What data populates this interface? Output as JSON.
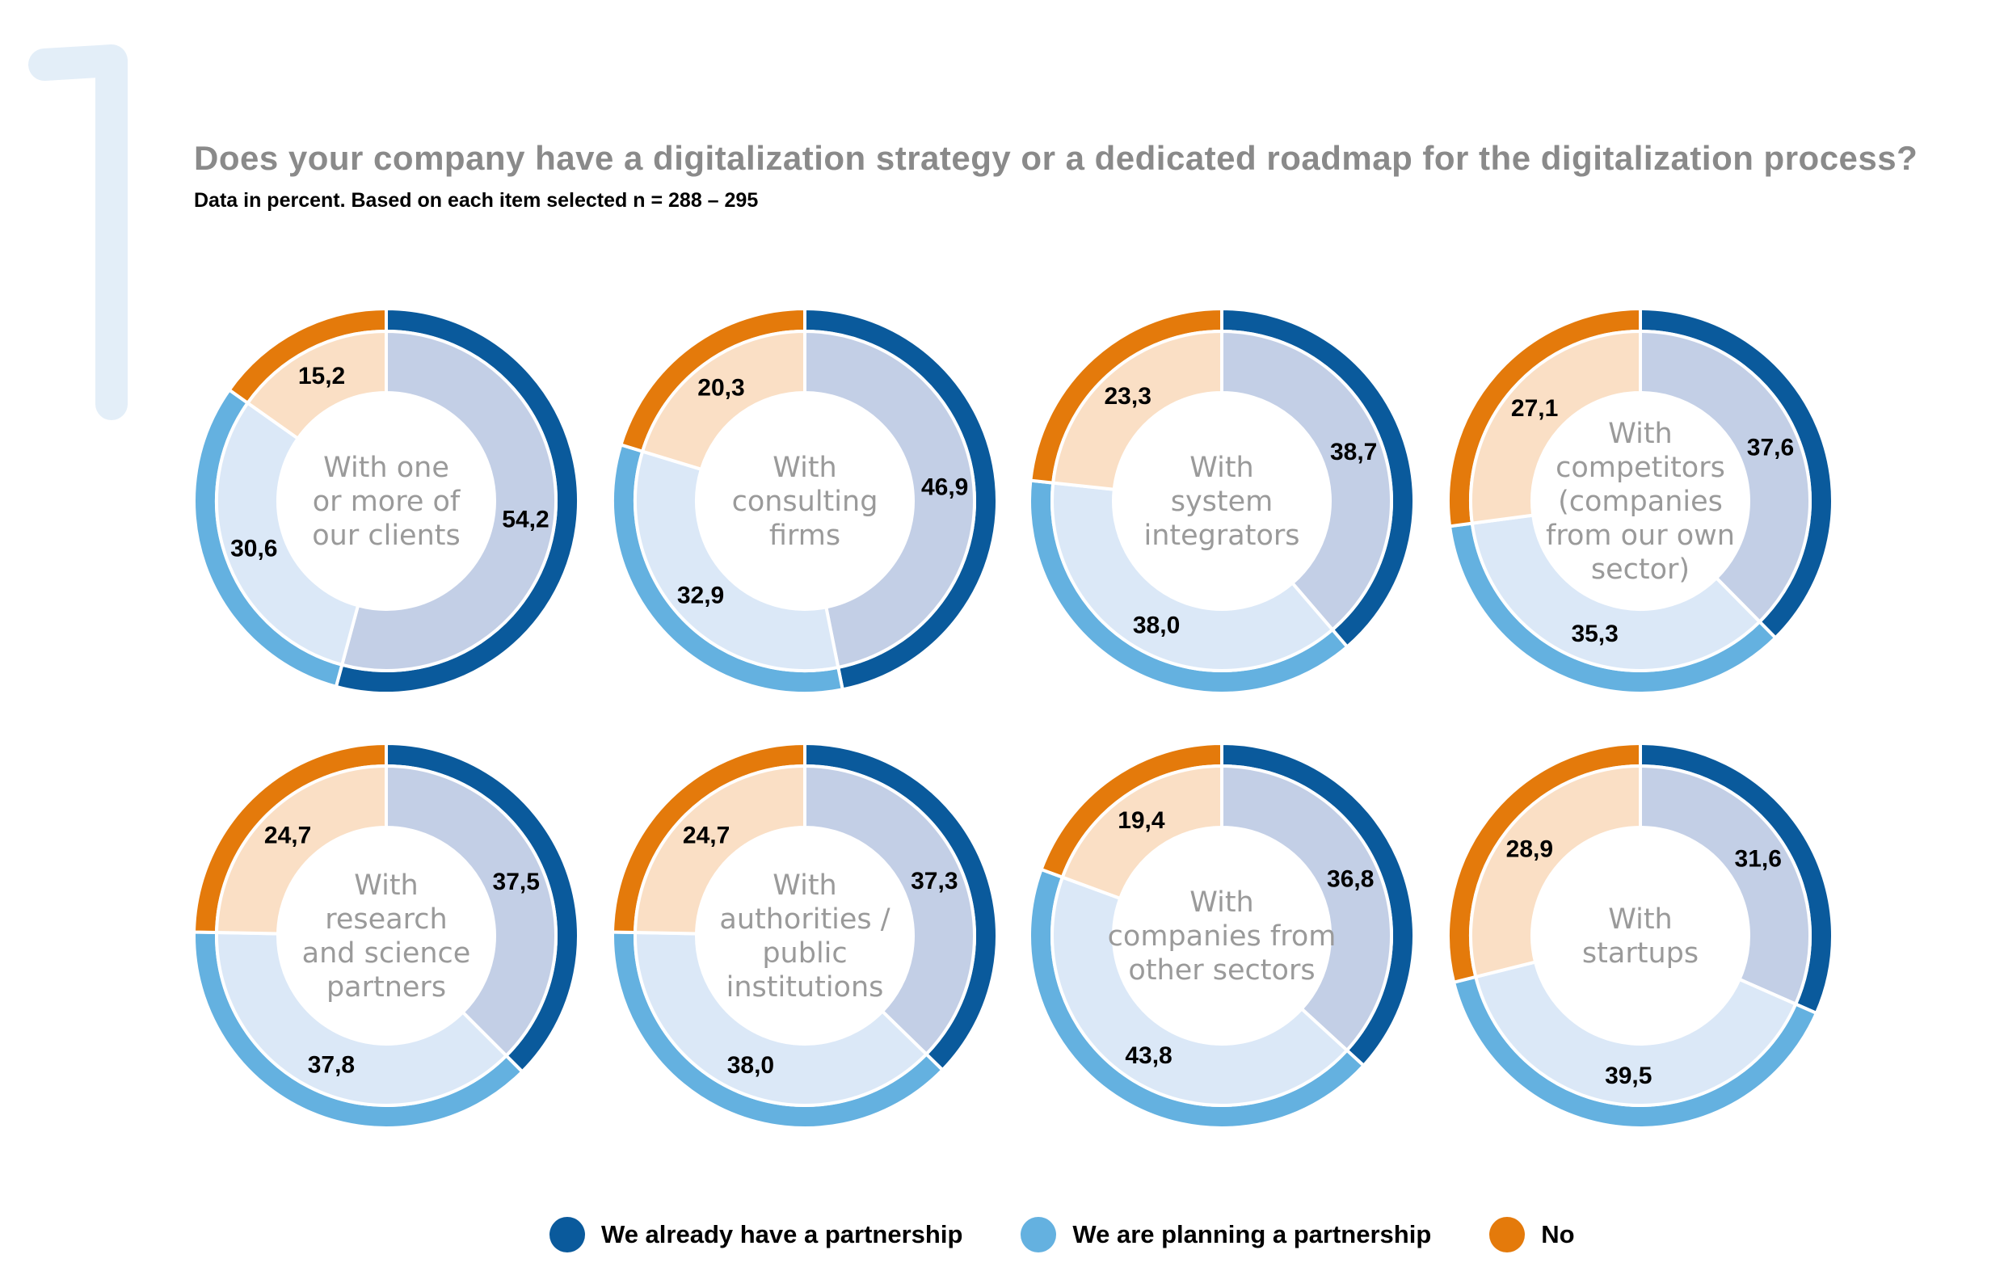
{
  "page_number": "1",
  "title": "Does your company have a digitalization strategy or a dedicated roadmap for the digitalization process?",
  "subtitle": "Data in percent. Based on each item selected n = 288 – 295",
  "colors": {
    "already_outer": "#0a5a9c",
    "already_inner": "#c3cfe6",
    "planning_outer": "#64b1e0",
    "planning_inner": "#dbe8f7",
    "no_outer": "#e47a0b",
    "no_inner": "#fadfc5",
    "number_watermark": "#e3eef8"
  },
  "legend": [
    {
      "label": "We already have a partnership",
      "color": "#0a5a9c"
    },
    {
      "label": "We are planning a partnership",
      "color": "#64b1e0"
    },
    {
      "label": "No",
      "color": "#e47a0b"
    }
  ],
  "chart_data": [
    {
      "type": "pie",
      "center_label": [
        "With one",
        "or more of",
        "our clients"
      ],
      "categories": [
        "We already have a partnership",
        "We are planning a partnership",
        "No"
      ],
      "values": [
        54.2,
        30.6,
        15.2
      ],
      "value_labels": [
        "54,2",
        "30,6",
        "15,2"
      ]
    },
    {
      "type": "pie",
      "center_label": [
        "With",
        "consulting",
        "firms"
      ],
      "categories": [
        "We already have a partnership",
        "We are planning a partnership",
        "No"
      ],
      "values": [
        46.9,
        32.9,
        20.3
      ],
      "value_labels": [
        "46,9",
        "32,9",
        "20,3"
      ]
    },
    {
      "type": "pie",
      "center_label": [
        "With",
        "system",
        "integrators"
      ],
      "categories": [
        "We already have a partnership",
        "We are planning a partnership",
        "No"
      ],
      "values": [
        38.7,
        38.0,
        23.3
      ],
      "value_labels": [
        "38,7",
        "38,0",
        "23,3"
      ]
    },
    {
      "type": "pie",
      "center_label": [
        "With",
        "competitors",
        "(companies",
        "from our own",
        "sector)"
      ],
      "categories": [
        "We already have a partnership",
        "We are planning a partnership",
        "No"
      ],
      "values": [
        37.6,
        35.3,
        27.1
      ],
      "value_labels": [
        "37,6",
        "35,3",
        "27,1"
      ]
    },
    {
      "type": "pie",
      "center_label": [
        "With",
        "research",
        "and science",
        "partners"
      ],
      "categories": [
        "We already have a partnership",
        "We are planning a partnership",
        "No"
      ],
      "values": [
        37.5,
        37.8,
        24.7
      ],
      "value_labels": [
        "37,5",
        "37,8",
        "24,7"
      ]
    },
    {
      "type": "pie",
      "center_label": [
        "With",
        "authorities /",
        "public",
        "institutions"
      ],
      "categories": [
        "We already have a partnership",
        "We are planning a partnership",
        "No"
      ],
      "values": [
        37.3,
        38.0,
        24.7
      ],
      "value_labels": [
        "37,3",
        "38,0",
        "24,7"
      ]
    },
    {
      "type": "pie",
      "center_label": [
        "With",
        "companies from",
        "other sectors"
      ],
      "categories": [
        "We already have a partnership",
        "We are planning a partnership",
        "No"
      ],
      "values": [
        36.8,
        43.8,
        19.4
      ],
      "value_labels": [
        "36,8",
        "43,8",
        "19,4"
      ]
    },
    {
      "type": "pie",
      "center_label": [
        "With",
        "startups"
      ],
      "categories": [
        "We already have a partnership",
        "We are planning a partnership",
        "No"
      ],
      "values": [
        31.6,
        39.5,
        28.9
      ],
      "value_labels": [
        "31,6",
        "39,5",
        "28,9"
      ]
    }
  ]
}
